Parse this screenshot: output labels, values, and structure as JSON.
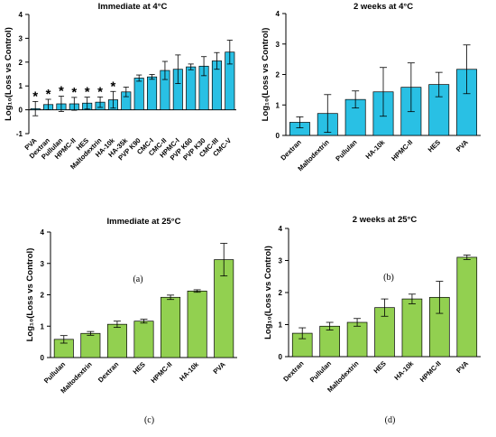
{
  "chart_data": [
    {
      "type": "bar",
      "title": "Immediate at 4°C",
      "panel_label": "(a)",
      "ylabel": "Log₁₀(Loss vs Control)",
      "ylim": [
        -1,
        4
      ],
      "yticks": [
        -1,
        0,
        1,
        2,
        3,
        4
      ],
      "color": "#29c0e4",
      "categories": [
        "PVA",
        "Dextran",
        "Pullulan",
        "HPMC-II",
        "HES",
        "Maltodextrin",
        "HA-10k",
        "HA-35k",
        "PVP K90",
        "CMC-I",
        "CMC-II",
        "HPMC-I",
        "PVP K60",
        "PVP K30",
        "CMC-III",
        "CMC-V"
      ],
      "values": [
        0.05,
        0.22,
        0.25,
        0.25,
        0.28,
        0.32,
        0.42,
        0.75,
        1.33,
        1.38,
        1.65,
        1.7,
        1.8,
        1.83,
        2.05,
        2.42
      ],
      "errors": [
        0.3,
        0.22,
        0.32,
        0.27,
        0.25,
        0.22,
        0.35,
        0.2,
        0.13,
        0.1,
        0.38,
        0.6,
        0.12,
        0.4,
        0.35,
        0.5
      ],
      "annotations": [
        "*",
        "*",
        "*",
        "*",
        "*",
        "*",
        "*",
        "",
        "",
        "",
        "",
        "",
        "",
        "",
        "",
        ""
      ]
    },
    {
      "type": "bar",
      "title": "2 weeks at 4°C",
      "panel_label": "(b)",
      "ylabel": "Log₁₀(Loss vs Control)",
      "ylim": [
        0,
        4
      ],
      "yticks": [
        0,
        1,
        2,
        3,
        4
      ],
      "color": "#29c0e4",
      "categories": [
        "Dextran",
        "Maltodextrin",
        "Pullulan",
        "HA-10k",
        "HPMC-II",
        "HES",
        "PVA"
      ],
      "values": [
        0.43,
        0.72,
        1.18,
        1.43,
        1.58,
        1.67,
        2.17
      ],
      "errors": [
        0.18,
        0.62,
        0.28,
        0.8,
        0.8,
        0.4,
        0.8
      ]
    },
    {
      "type": "bar",
      "title": "Immediate at 25°C",
      "panel_label": "(c)",
      "ylabel": "Log₁₀(Loss vs Control)",
      "ylim": [
        0,
        4
      ],
      "yticks": [
        0,
        1,
        2,
        3,
        4
      ],
      "color": "#92d050",
      "categories": [
        "Pullulan",
        "Maltodextrin",
        "Dextran",
        "HES",
        "HPMC-II",
        "HA-10k",
        "PVA"
      ],
      "values": [
        0.58,
        0.77,
        1.06,
        1.16,
        1.92,
        2.12,
        3.12
      ],
      "errors": [
        0.12,
        0.06,
        0.1,
        0.06,
        0.07,
        0.04,
        0.52
      ]
    },
    {
      "type": "bar",
      "title": "2 weeks at 25°C",
      "panel_label": "(d)",
      "ylabel": "Log₁₀(Loss vs Control)",
      "ylim": [
        0,
        4
      ],
      "yticks": [
        0,
        1,
        2,
        3,
        4
      ],
      "color": "#92d050",
      "categories": [
        "Dextran",
        "Pullulan",
        "Maltodextrin",
        "HES",
        "HA-10k",
        "HPMC-II",
        "PVA"
      ],
      "values": [
        0.73,
        0.95,
        1.07,
        1.53,
        1.8,
        1.85,
        3.1
      ],
      "errors": [
        0.17,
        0.12,
        0.12,
        0.27,
        0.15,
        0.5,
        0.07
      ]
    }
  ]
}
